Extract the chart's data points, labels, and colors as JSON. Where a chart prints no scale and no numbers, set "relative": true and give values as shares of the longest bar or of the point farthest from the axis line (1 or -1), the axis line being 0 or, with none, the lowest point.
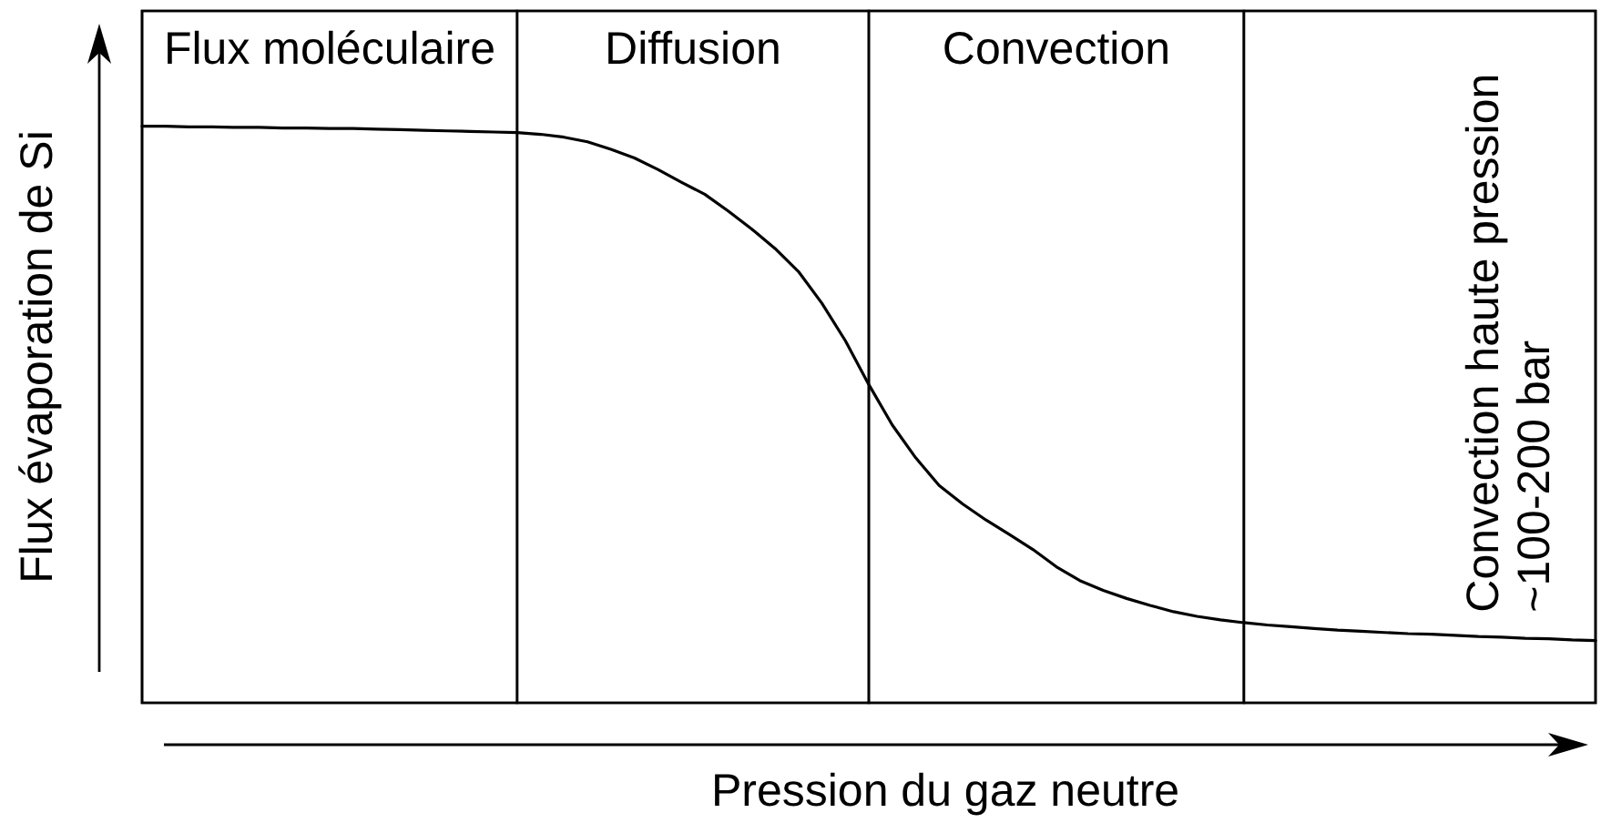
{
  "chart_data": {
    "type": "line",
    "relative": true,
    "xlabel": "Pression du gaz neutre",
    "ylabel": "Flux évaporation de Si",
    "categories": [
      null,
      null,
      null,
      null,
      null,
      null,
      null,
      null,
      null,
      null,
      null,
      null,
      null,
      null,
      null,
      null,
      null,
      null,
      null,
      null,
      null,
      null,
      null,
      null,
      null,
      null,
      null,
      null,
      null,
      null,
      null,
      null,
      null,
      null,
      null,
      null,
      null,
      null,
      null,
      null,
      null,
      null,
      null,
      null,
      null,
      null,
      null,
      null,
      null,
      null,
      null,
      null,
      null,
      null,
      null,
      null,
      null,
      null,
      null,
      null,
      null,
      null,
      null
    ],
    "color": "#000000",
    "values": [
      1.0,
      1.0,
      0.999,
      0.999,
      0.998,
      0.998,
      0.997,
      0.997,
      0.996,
      0.996,
      0.995,
      0.994,
      0.993,
      0.992,
      0.991,
      0.99,
      0.989,
      0.986,
      0.981,
      0.973,
      0.96,
      0.945,
      0.925,
      0.903,
      0.882,
      0.853,
      0.822,
      0.788,
      0.748,
      0.693,
      0.628,
      0.552,
      0.482,
      0.425,
      0.377,
      0.345,
      0.317,
      0.292,
      0.266,
      0.236,
      0.212,
      0.195,
      0.181,
      0.169,
      0.158,
      0.15,
      0.144,
      0.139,
      0.135,
      0.132,
      0.129,
      0.126,
      0.124,
      0.122,
      0.12,
      0.119,
      0.117,
      0.115,
      0.114,
      0.112,
      0.111,
      0.109,
      0.108
    ],
    "annotations": [
      "Flux moléculaire",
      "Diffusion",
      "Convection",
      "Convection haute pression ~100-200 bar"
    ]
  }
}
